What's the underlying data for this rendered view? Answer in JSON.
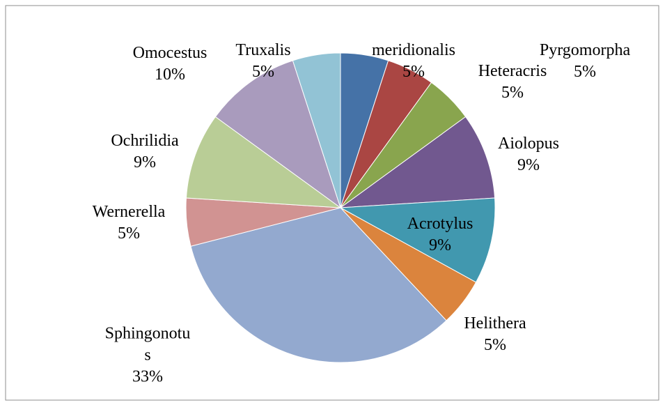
{
  "chart_data": {
    "type": "pie",
    "categories": [
      "meridionalis",
      "Pyrgomorpha",
      "Heteracris",
      "Aiolopus",
      "Acrotylus",
      "Helithera",
      "Sphingonotus",
      "Wernerella",
      "Ochrilidia",
      "Omocestus",
      "Truxalis"
    ],
    "values": [
      5,
      5,
      5,
      9,
      9,
      5,
      33,
      5,
      9,
      10,
      5
    ],
    "value_labels": [
      "5%",
      "5%",
      "5%",
      "9%",
      "9%",
      "5%",
      "33%",
      "5%",
      "9%",
      "10%",
      "5%"
    ],
    "colors": [
      "#4572a7",
      "#aa4643",
      "#89a54e",
      "#71588f",
      "#4198af",
      "#db843d",
      "#93a9cf",
      "#d19392",
      "#b9cd96",
      "#a99bbd",
      "#92c3d5"
    ]
  }
}
